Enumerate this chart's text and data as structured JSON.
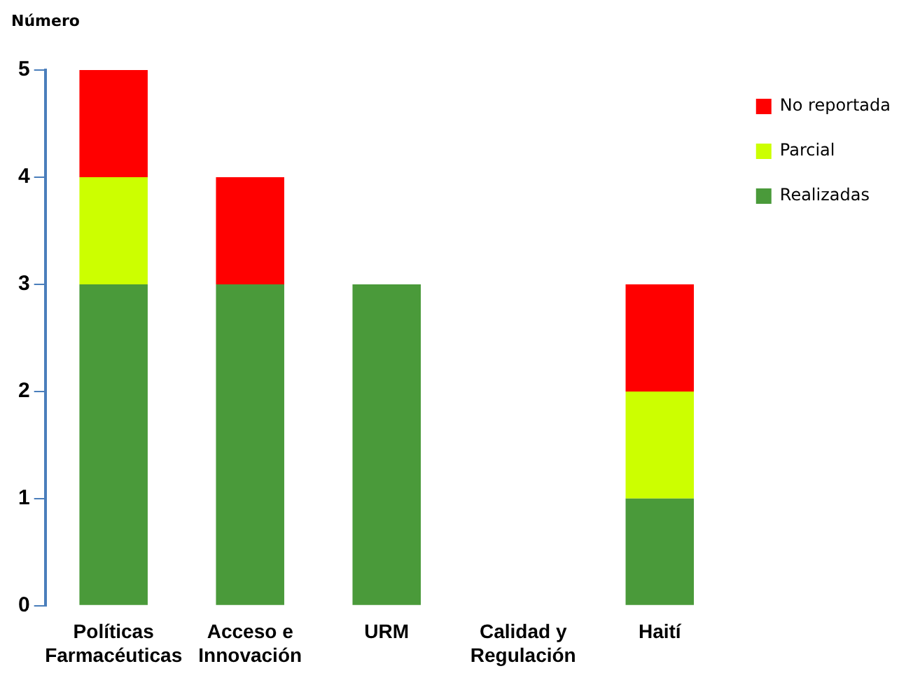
{
  "chart_data": {
    "type": "bar",
    "ylabel": "Número",
    "stacked": true,
    "legend": "top right",
    "grid": false,
    "categories": [
      "Políticas\nFarmacéuticas",
      "Acceso e\nInnovación",
      "URM",
      "Calidad y\nRegulación",
      "Haití"
    ],
    "ylim": [
      0,
      5
    ],
    "yticks": [
      0,
      1,
      2,
      3,
      4,
      5
    ],
    "series": [
      {
        "name": "Realizadas",
        "color": "#4a9a3a",
        "values": [
          3,
          3,
          3,
          0,
          1
        ]
      },
      {
        "name": "Parcial",
        "color": "#ccff00",
        "values": [
          1,
          0,
          0,
          0,
          1
        ]
      },
      {
        "name": "No reportada",
        "color": "#ff0000",
        "values": [
          1,
          1,
          0,
          0,
          1
        ]
      }
    ]
  }
}
